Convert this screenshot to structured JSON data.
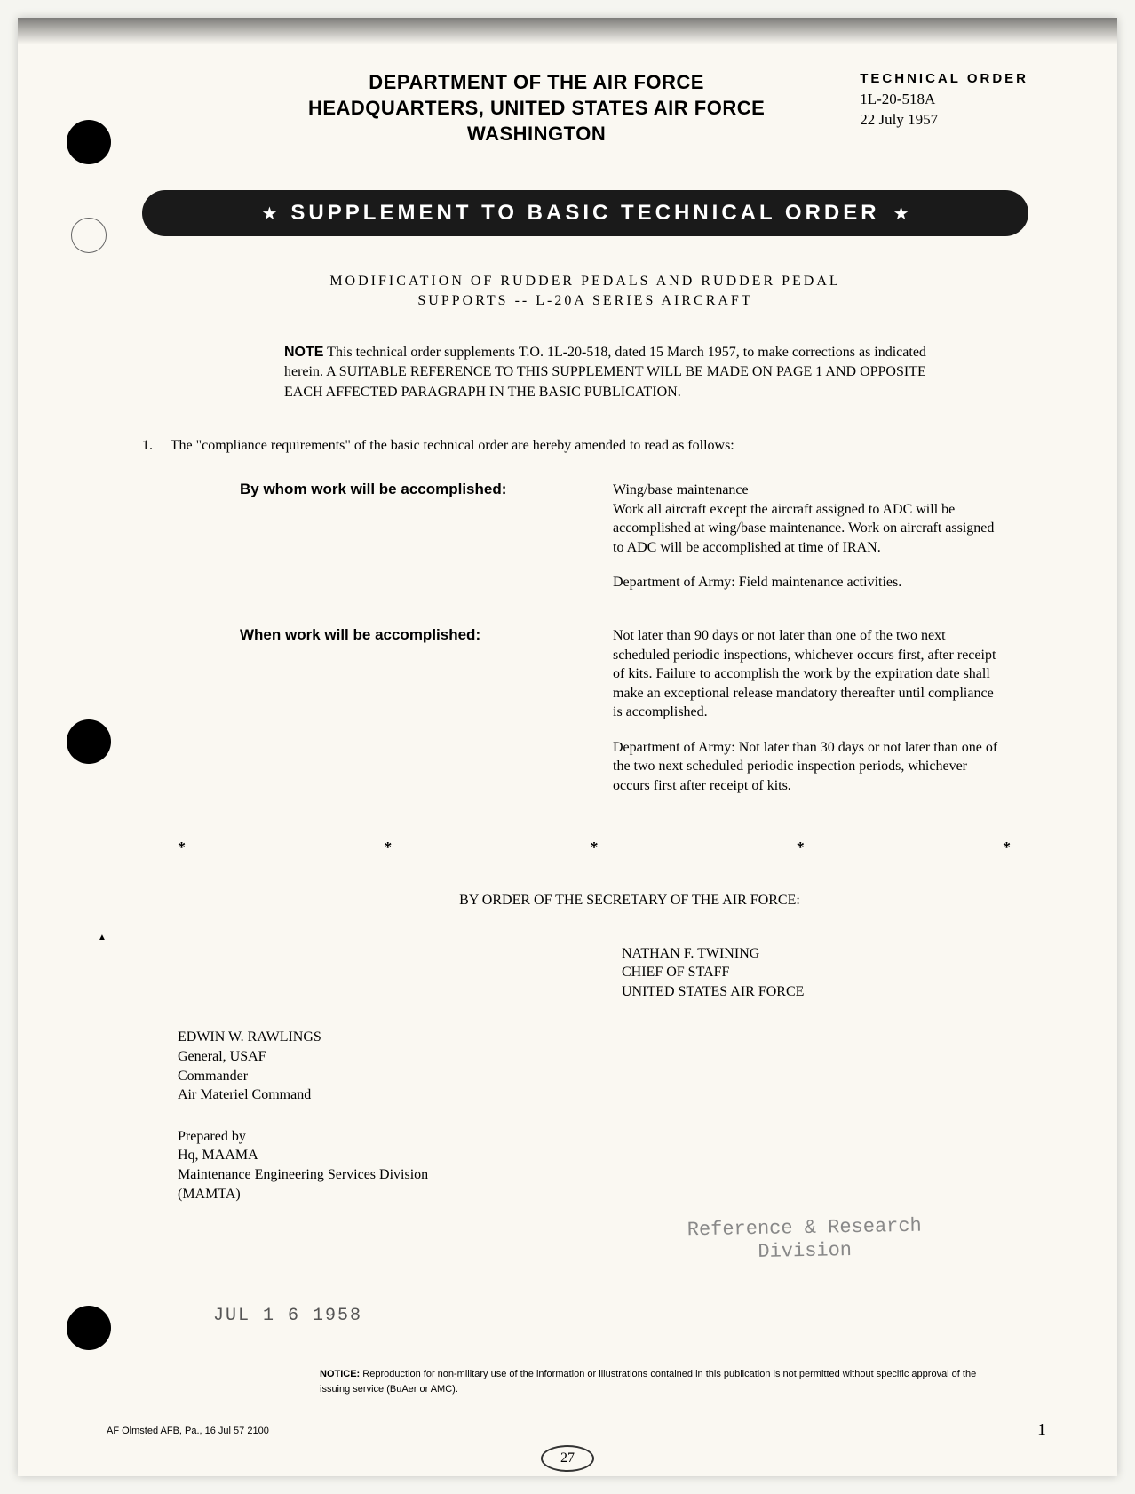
{
  "header": {
    "dept": "DEPARTMENT OF THE AIR FORCE",
    "hq": "HEADQUARTERS, UNITED STATES AIR FORCE",
    "location": "WASHINGTON",
    "tech_order_label": "TECHNICAL ORDER",
    "order_number": "1L-20-518A",
    "order_date": "22 July 1957"
  },
  "banner": "SUPPLEMENT TO BASIC TECHNICAL ORDER",
  "subtitle_line1": "MODIFICATION OF RUDDER PEDALS AND RUDDER PEDAL",
  "subtitle_line2": "SUPPORTS -- L-20A SERIES AIRCRAFT",
  "note": {
    "label": "NOTE",
    "text": " This technical order supplements T.O. 1L-20-518, dated 15 March 1957, to make corrections as indicated herein. A SUITABLE REFERENCE TO THIS SUPPLEMENT WILL BE MADE ON PAGE 1 AND OPPOSITE EACH AFFECTED PARAGRAPH IN THE BASIC PUBLICATION."
  },
  "item1": {
    "number": "1.",
    "text": "The \"compliance requirements\" of the basic technical order are hereby amended to read as follows:"
  },
  "compliance": {
    "by_whom_label": "By whom work will be accomplished:",
    "by_whom_text1": "Wing/base maintenance",
    "by_whom_text2": "Work all aircraft except the aircraft assigned to ADC will be accomplished at wing/base maintenance. Work on aircraft assigned to ADC will be accomplished at time of IRAN.",
    "by_whom_text3": "Department of Army: Field maintenance activities.",
    "when_label": "When work will be accomplished:",
    "when_text1": "Not later than 90 days or not later than one of the two next scheduled periodic inspections, whichever occurs first, after receipt of kits. Failure to accomplish the work by the expiration date shall make an exceptional release mandatory thereafter until compliance is accomplished.",
    "when_text2": "Department of Army: Not later than 30 days or not later than one of the two next scheduled periodic inspection periods, whichever occurs first after receipt of kits."
  },
  "by_order": "BY ORDER OF THE SECRETARY OF THE AIR FORCE:",
  "signature_right": {
    "name": "NATHAN F. TWINING",
    "title": "CHIEF OF STAFF",
    "org": "UNITED STATES AIR FORCE"
  },
  "signature_left1": {
    "name": "EDWIN W. RAWLINGS",
    "rank": "General, USAF",
    "title": "Commander",
    "org": "Air Materiel Command"
  },
  "signature_left2": {
    "prepared": "Prepared by",
    "hq": "Hq, MAAMA",
    "div": "Maintenance Engineering Services Division",
    "code": "(MAMTA)"
  },
  "stamp": {
    "line1": "Reference & Research",
    "line2": "Division"
  },
  "date_stamp": "JUL 1 6 1958",
  "notice": {
    "label": "NOTICE:",
    "text": " Reproduction for non-military use of the information or illustrations contained in this publication is not permitted without specific approval of the issuing service (BuAer or AMC)."
  },
  "footer": "AF Olmsted AFB, Pa., 16 Jul 57 2100",
  "page_number": "1",
  "circled": "27"
}
